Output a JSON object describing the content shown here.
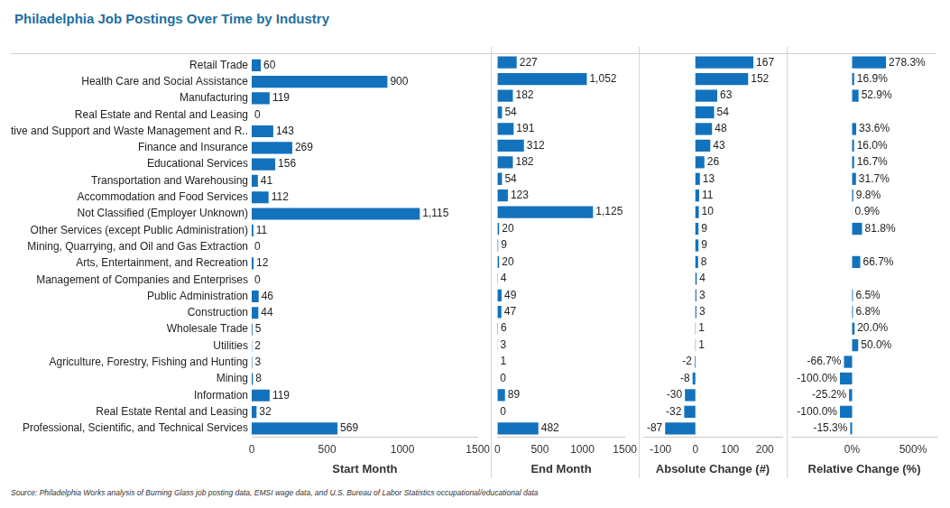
{
  "title": "Philadelphia Job Postings Over Time by Industry",
  "source": "Source:  Philadelphia Works analysis of Burning Glass job posting data, EMSI wage data, and U.S. Bureau of Labor Statistics occupational/educational data",
  "chart_data": [
    {
      "type": "bar",
      "orientation": "horizontal",
      "xlabel": "Start Month",
      "categories": [
        "Retail Trade",
        "Health Care and Social Assistance",
        "Manufacturing",
        "Real Estate and Rental and Leasing",
        "Administrative and Support and Waste Management and R..",
        "Finance and Insurance",
        "Educational Services",
        "Transportation and Warehousing",
        "Accommodation and Food Services",
        "Not Classified (Employer Unknown)",
        "Other Services (except Public Administration)",
        "Mining, Quarrying, and Oil and Gas Extraction",
        "Arts, Entertainment, and Recreation",
        "Management of Companies and Enterprises",
        "Public Administration",
        "Construction",
        "Wholesale Trade",
        "Utilities",
        "Agriculture, Forestry, Fishing and Hunting",
        "Mining",
        "Information",
        "Real Estate Rental and Leasing",
        "Professional, Scientific, and Technical Services"
      ],
      "values": [
        60,
        900,
        119,
        0,
        143,
        269,
        156,
        41,
        112,
        1115,
        11,
        0,
        12,
        0,
        46,
        44,
        5,
        2,
        3,
        8,
        119,
        32,
        569
      ],
      "value_labels": [
        "60",
        "900",
        "119",
        "0",
        "143",
        "269",
        "156",
        "41",
        "112",
        "1,115",
        "11",
        "0",
        "12",
        "0",
        "46",
        "44",
        "5",
        "2",
        "3",
        "8",
        "119",
        "32",
        "569"
      ],
      "color": "#1372bd",
      "xlim": [
        0,
        1500
      ],
      "xticks": [
        0,
        500,
        1000,
        1500
      ],
      "grid": false,
      "data_labels": true
    },
    {
      "type": "bar",
      "orientation": "horizontal",
      "xlabel": "End Month",
      "tick_labels": "x",
      "categories": [
        "Retail Trade",
        "Health Care and Social Assistance",
        "Manufacturing",
        "Real Estate and Rental and Leasing",
        "Administrative and Support and Waste Management and R..",
        "Finance and Insurance",
        "Educational Services",
        "Transportation and Warehousing",
        "Accommodation and Food Services",
        "Not Classified (Employer Unknown)",
        "Other Services (except Public Administration)",
        "Mining, Quarrying, and Oil and Gas Extraction",
        "Arts, Entertainment, and Recreation",
        "Management of Companies and Enterprises",
        "Public Administration",
        "Construction",
        "Wholesale Trade",
        "Utilities",
        "Agriculture, Forestry, Fishing and Hunting",
        "Mining",
        "Information",
        "Real Estate Rental and Leasing",
        "Professional, Scientific, and Technical Services"
      ],
      "values": [
        227,
        1052,
        182,
        54,
        191,
        312,
        182,
        54,
        123,
        1125,
        20,
        9,
        20,
        4,
        49,
        47,
        6,
        3,
        1,
        0,
        89,
        0,
        482
      ],
      "value_labels": [
        "227",
        "1,052",
        "182",
        "54",
        "191",
        "312",
        "182",
        "54",
        "123",
        "1,125",
        "20",
        "9",
        "20",
        "4",
        "49",
        "47",
        "6",
        "3",
        "1",
        "0",
        "89",
        "0",
        "482"
      ],
      "color": "#1372bd",
      "xlim": [
        0,
        1500
      ],
      "xticks": [
        0,
        500,
        1000,
        1500
      ],
      "grid": false,
      "data_labels": true
    },
    {
      "type": "bar",
      "orientation": "horizontal",
      "xlabel": "Absolute Change (#)",
      "tick_labels": "x",
      "categories": [
        "Retail Trade",
        "Health Care and Social Assistance",
        "Manufacturing",
        "Real Estate and Rental and Leasing",
        "Administrative and Support and Waste Management and R..",
        "Finance and Insurance",
        "Educational Services",
        "Transportation and Warehousing",
        "Accommodation and Food Services",
        "Not Classified (Employer Unknown)",
        "Other Services (except Public Administration)",
        "Mining, Quarrying, and Oil and Gas Extraction",
        "Arts, Entertainment, and Recreation",
        "Management of Companies and Enterprises",
        "Public Administration",
        "Construction",
        "Wholesale Trade",
        "Utilities",
        "Agriculture, Forestry, Fishing and Hunting",
        "Mining",
        "Information",
        "Real Estate Rental and Leasing",
        "Professional, Scientific, and Technical Services"
      ],
      "values": [
        167,
        152,
        63,
        54,
        48,
        43,
        26,
        13,
        11,
        10,
        9,
        9,
        8,
        4,
        3,
        3,
        1,
        1,
        -2,
        -8,
        -30,
        -32,
        -87
      ],
      "color": "#1372bd",
      "xlim": [
        -150,
        250
      ],
      "xticks": [
        -100,
        0,
        100,
        200
      ],
      "grid": false,
      "data_labels": true
    },
    {
      "type": "bar",
      "orientation": "horizontal",
      "xlabel": "Relative Change (%)",
      "tick_labels": "x",
      "categories": [
        "Retail Trade",
        "Health Care and Social Assistance",
        "Manufacturing",
        "Real Estate and Rental and Leasing",
        "Administrative and Support and Waste Management and R..",
        "Finance and Insurance",
        "Educational Services",
        "Transportation and Warehousing",
        "Accommodation and Food Services",
        "Not Classified (Employer Unknown)",
        "Other Services (except Public Administration)",
        "Mining, Quarrying, and Oil and Gas Extraction",
        "Arts, Entertainment, and Recreation",
        "Management of Companies and Enterprises",
        "Public Administration",
        "Construction",
        "Wholesale Trade",
        "Utilities",
        "Agriculture, Forestry, Fishing and Hunting",
        "Mining",
        "Information",
        "Real Estate Rental and Leasing",
        "Professional, Scientific, and Technical Services"
      ],
      "values": [
        278.3,
        16.9,
        52.9,
        null,
        33.6,
        16.0,
        16.7,
        31.7,
        9.8,
        0.9,
        81.8,
        null,
        66.7,
        null,
        6.5,
        6.8,
        20.0,
        50.0,
        -66.7,
        -100.0,
        -25.2,
        -100.0,
        -15.3
      ],
      "value_labels": [
        "278.3%",
        "16.9%",
        "52.9%",
        null,
        "33.6%",
        "16.0%",
        "16.7%",
        "31.7%",
        "9.8%",
        "0.9%",
        "81.8%",
        null,
        "66.7%",
        null,
        "6.5%",
        "6.8%",
        "20.0%",
        "50.0%",
        "-66.7%",
        "-100.0%",
        "-25.2%",
        "-100.0%",
        "-15.3%"
      ],
      "color": "#1372bd",
      "xlim": [
        -500,
        700
      ],
      "xticks": [
        {
          "value": 0,
          "label": "0%"
        },
        {
          "value": 500,
          "label": "500%"
        }
      ],
      "grid": false,
      "data_labels": true
    }
  ]
}
